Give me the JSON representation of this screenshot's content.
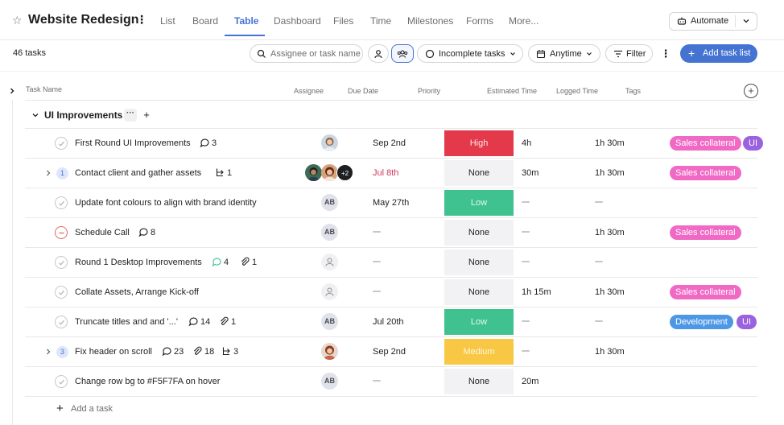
{
  "project": {
    "title": "Website Redesign"
  },
  "tabs": [
    {
      "label": "List",
      "active": false
    },
    {
      "label": "Board",
      "active": false
    },
    {
      "label": "Table",
      "active": true
    },
    {
      "label": "Dashboard",
      "active": false
    },
    {
      "label": "Files",
      "active": false
    },
    {
      "label": "Time",
      "active": false
    },
    {
      "label": "Milestones",
      "active": false
    },
    {
      "label": "Forms",
      "active": false
    },
    {
      "label": "More...",
      "active": false
    }
  ],
  "automate_label": "Automate",
  "toolbar": {
    "task_count": "46 tasks",
    "search_placeholder": "Assignee or task name",
    "status_filter": "Incomplete tasks",
    "date_filter": "Anytime",
    "filter_label": "Filter",
    "add_list_label": "Add task list"
  },
  "columns": {
    "name": "Task Name",
    "assignee": "Assignee",
    "due": "Due Date",
    "priority": "Priority",
    "estimated": "Estimated Time",
    "logged": "Logged Time",
    "tags": "Tags"
  },
  "section": {
    "title": "UI Improvements"
  },
  "tasks": [
    {
      "name": "First Round UI Improvements",
      "comments": "3",
      "attachments": "",
      "subtasks": "",
      "subtask_count": "",
      "status": "open",
      "assignee": "photo-a",
      "due": "Sep 2nd",
      "due_late": false,
      "priority": "High",
      "priority_level": "high",
      "estimated": "4h",
      "logged": "1h 30m",
      "tags": [
        "Sales collateral",
        "UI"
      ]
    },
    {
      "name": "Contact client and gather assets",
      "comments": "",
      "attachments": "",
      "subtasks": "1",
      "subtask_count": "1",
      "status": "open",
      "assignee": "group",
      "assignee_extra": "+2",
      "due": "Jul 8th",
      "due_late": true,
      "priority": "None",
      "priority_level": "none",
      "estimated": "30m",
      "logged": "1h 30m",
      "tags": [
        "Sales collateral"
      ]
    },
    {
      "name": "Update font colours to align with brand identity",
      "comments": "",
      "attachments": "",
      "subtasks": "",
      "subtask_count": "",
      "status": "open",
      "assignee": "AB",
      "due": "May 27th",
      "due_late": false,
      "priority": "Low",
      "priority_level": "low",
      "estimated": "",
      "logged": "",
      "tags": []
    },
    {
      "name": "Schedule Call",
      "comments": "8",
      "attachments": "",
      "subtasks": "",
      "subtask_count": "",
      "status": "cancelled",
      "assignee": "AB",
      "due": "",
      "due_late": false,
      "priority": "None",
      "priority_level": "none",
      "estimated": "",
      "logged": "1h 30m",
      "tags": [
        "Sales collateral"
      ]
    },
    {
      "name": "Round 1 Desktop Improvements",
      "comments": "4",
      "attachments": "1",
      "subtasks": "",
      "subtask_count": "",
      "status": "open",
      "assignee": "empty",
      "due": "",
      "due_late": false,
      "priority": "None",
      "priority_level": "none",
      "estimated": "",
      "logged": "",
      "tags": []
    },
    {
      "name": "Collate Assets, Arrange Kick-off",
      "comments": "",
      "attachments": "",
      "subtasks": "",
      "subtask_count": "",
      "status": "open",
      "assignee": "empty",
      "due": "",
      "due_late": false,
      "priority": "None",
      "priority_level": "none",
      "estimated": "1h 15m",
      "logged": "1h 30m",
      "tags": [
        "Sales collateral"
      ]
    },
    {
      "name": "Truncate titles and and '...'",
      "comments": "14",
      "attachments": "1",
      "subtasks": "",
      "subtask_count": "",
      "status": "open",
      "assignee": "AB",
      "due": "Jul 20th",
      "due_late": false,
      "priority": "Low",
      "priority_level": "low",
      "estimated": "",
      "logged": "",
      "tags": [
        "Development",
        "UI"
      ]
    },
    {
      "name": "Fix header on scroll",
      "comments": "23",
      "attachments": "18",
      "subtasks": "3",
      "subtask_count": "3",
      "status": "open",
      "assignee": "photo-b",
      "due": "Sep 2nd",
      "due_late": false,
      "priority": "Medium",
      "priority_level": "medium",
      "estimated": "",
      "logged": "1h 30m",
      "tags": []
    },
    {
      "name": "Change row bg to #F5F7FA on hover",
      "comments": "",
      "attachments": "",
      "subtasks": "",
      "subtask_count": "",
      "status": "open",
      "assignee": "AB",
      "due": "",
      "due_late": false,
      "priority": "None",
      "priority_level": "none",
      "estimated": "20m",
      "logged": "",
      "tags": []
    }
  ],
  "add_task_label": "Add a task",
  "colors": {
    "accent": "#4573d2",
    "high": "#e3394a",
    "low": "#3fc290",
    "medium": "#f8c744",
    "tag_sales": "#f06ac5",
    "tag_ui": "#9b62df",
    "tag_dev": "#4d98e6",
    "late": "#d1395a"
  }
}
